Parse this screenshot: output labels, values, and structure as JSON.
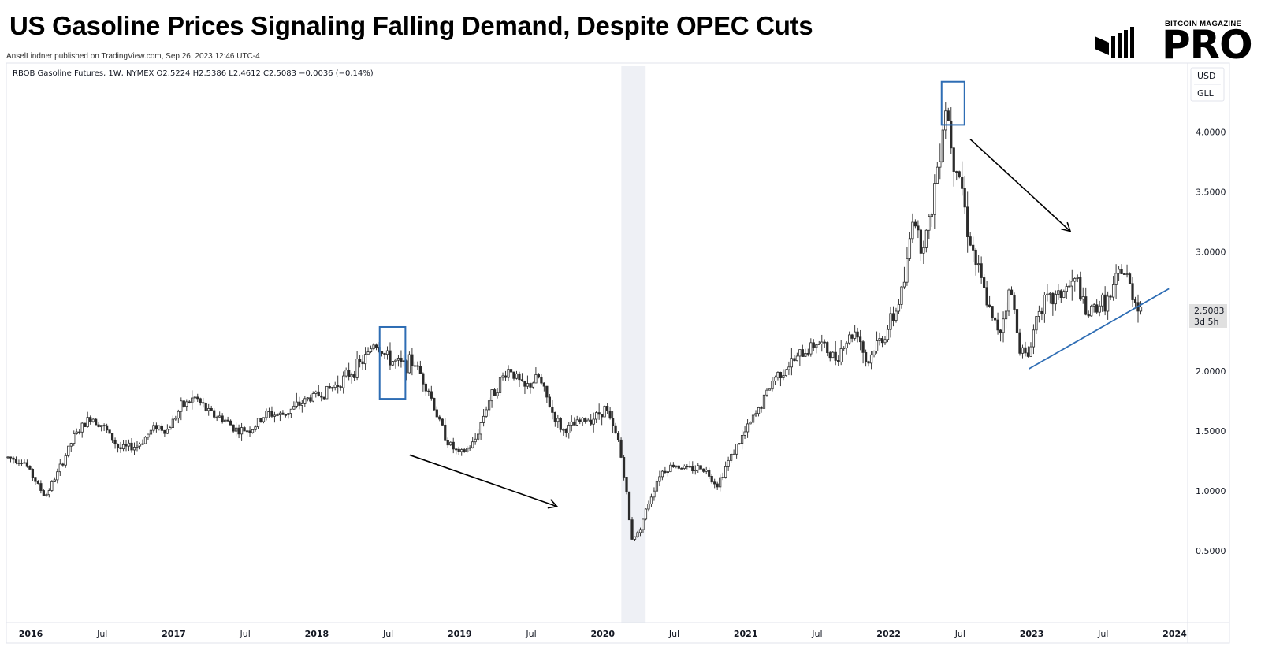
{
  "header": {
    "title": "US Gasoline Prices Signaling Falling Demand, Despite OPEC Cuts",
    "byline": "AnselLindner published on TradingView.com, Sep 26, 2023 12:46 UTC-4",
    "logo_small": "BITCOIN MAGAZINE",
    "logo_big": "PRO"
  },
  "chart_data": {
    "type": "candlestick",
    "legend": "RBOB Gasoline Futures, 1W, NYMEX  O2.5224  H2.5386  L2.4612  C2.5083  −0.0036 (−0.14%)",
    "currency_button": "USD",
    "unit_button": "GLL",
    "last_price": "2.5083",
    "countdown": "3d 5h",
    "y_ticks": [
      "4.0000",
      "3.5000",
      "3.0000",
      "2.5000",
      "2.0000",
      "1.5000",
      "1.0000",
      "0.5000"
    ],
    "y_tick_values": [
      4.0,
      3.5,
      3.0,
      2.5,
      2.0,
      1.5,
      1.0,
      0.5
    ],
    "ylim": [
      -0.1,
      4.55
    ],
    "x_ticks": [
      {
        "label": "2016",
        "t": 2016.0,
        "bold": true
      },
      {
        "label": "Jul",
        "t": 2016.5,
        "bold": false
      },
      {
        "label": "2017",
        "t": 2017.0,
        "bold": true
      },
      {
        "label": "Jul",
        "t": 2017.5,
        "bold": false
      },
      {
        "label": "2018",
        "t": 2018.0,
        "bold": true
      },
      {
        "label": "Jul",
        "t": 2018.5,
        "bold": false
      },
      {
        "label": "2019",
        "t": 2019.0,
        "bold": true
      },
      {
        "label": "Jul",
        "t": 2019.5,
        "bold": false
      },
      {
        "label": "2020",
        "t": 2020.0,
        "bold": true
      },
      {
        "label": "Jul",
        "t": 2020.5,
        "bold": false
      },
      {
        "label": "2021",
        "t": 2021.0,
        "bold": true
      },
      {
        "label": "Jul",
        "t": 2021.5,
        "bold": false
      },
      {
        "label": "2022",
        "t": 2022.0,
        "bold": true
      },
      {
        "label": "Jul",
        "t": 2022.5,
        "bold": false
      },
      {
        "label": "2023",
        "t": 2023.0,
        "bold": true
      },
      {
        "label": "Jul",
        "t": 2023.5,
        "bold": false
      },
      {
        "label": "2024",
        "t": 2024.0,
        "bold": true
      }
    ],
    "xlim": [
      2015.84,
      2024.08
    ],
    "shaded_period": [
      2020.13,
      2020.3
    ],
    "price_path": [
      [
        2015.84,
        1.28
      ],
      [
        2015.95,
        1.25
      ],
      [
        2016.05,
        1.05
      ],
      [
        2016.1,
        0.95
      ],
      [
        2016.2,
        1.18
      ],
      [
        2016.3,
        1.45
      ],
      [
        2016.42,
        1.62
      ],
      [
        2016.5,
        1.55
      ],
      [
        2016.62,
        1.35
      ],
      [
        2016.75,
        1.38
      ],
      [
        2016.88,
        1.55
      ],
      [
        2016.95,
        1.5
      ],
      [
        2017.05,
        1.7
      ],
      [
        2017.15,
        1.78
      ],
      [
        2017.25,
        1.65
      ],
      [
        2017.35,
        1.6
      ],
      [
        2017.45,
        1.5
      ],
      [
        2017.55,
        1.52
      ],
      [
        2017.65,
        1.65
      ],
      [
        2017.75,
        1.63
      ],
      [
        2017.85,
        1.7
      ],
      [
        2017.95,
        1.78
      ],
      [
        2018.05,
        1.82
      ],
      [
        2018.15,
        1.9
      ],
      [
        2018.25,
        2.0
      ],
      [
        2018.35,
        2.12
      ],
      [
        2018.4,
        2.25
      ],
      [
        2018.45,
        2.18
      ],
      [
        2018.5,
        2.1
      ],
      [
        2018.6,
        2.05
      ],
      [
        2018.68,
        2.08
      ],
      [
        2018.78,
        1.85
      ],
      [
        2018.85,
        1.6
      ],
      [
        2018.92,
        1.4
      ],
      [
        2019.0,
        1.3
      ],
      [
        2019.1,
        1.4
      ],
      [
        2019.2,
        1.75
      ],
      [
        2019.3,
        1.95
      ],
      [
        2019.35,
        2.03
      ],
      [
        2019.45,
        1.85
      ],
      [
        2019.55,
        1.95
      ],
      [
        2019.65,
        1.65
      ],
      [
        2019.72,
        1.5
      ],
      [
        2019.85,
        1.58
      ],
      [
        2019.95,
        1.62
      ],
      [
        2020.02,
        1.7
      ],
      [
        2020.06,
        1.55
      ],
      [
        2020.11,
        1.42
      ],
      [
        2020.16,
        1.05
      ],
      [
        2020.2,
        0.6
      ],
      [
        2020.25,
        0.65
      ],
      [
        2020.32,
        0.9
      ],
      [
        2020.4,
        1.15
      ],
      [
        2020.5,
        1.22
      ],
      [
        2020.6,
        1.18
      ],
      [
        2020.7,
        1.2
      ],
      [
        2020.8,
        1.05
      ],
      [
        2020.9,
        1.3
      ],
      [
        2021.0,
        1.5
      ],
      [
        2021.1,
        1.7
      ],
      [
        2021.2,
        1.95
      ],
      [
        2021.3,
        2.05
      ],
      [
        2021.4,
        2.15
      ],
      [
        2021.5,
        2.25
      ],
      [
        2021.55,
        2.2
      ],
      [
        2021.62,
        2.1
      ],
      [
        2021.7,
        2.25
      ],
      [
        2021.78,
        2.35
      ],
      [
        2021.85,
        2.05
      ],
      [
        2021.9,
        2.2
      ],
      [
        2021.97,
        2.3
      ],
      [
        2022.05,
        2.5
      ],
      [
        2022.12,
        2.8
      ],
      [
        2022.17,
        3.35
      ],
      [
        2022.22,
        3.05
      ],
      [
        2022.28,
        3.2
      ],
      [
        2022.35,
        3.8
      ],
      [
        2022.4,
        4.25
      ],
      [
        2022.45,
        3.8
      ],
      [
        2022.5,
        3.65
      ],
      [
        2022.55,
        3.2
      ],
      [
        2022.6,
        2.95
      ],
      [
        2022.67,
        2.65
      ],
      [
        2022.73,
        2.4
      ],
      [
        2022.78,
        2.35
      ],
      [
        2022.85,
        2.7
      ],
      [
        2022.92,
        2.2
      ],
      [
        2022.97,
        2.1
      ],
      [
        2023.05,
        2.55
      ],
      [
        2023.15,
        2.6
      ],
      [
        2023.25,
        2.7
      ],
      [
        2023.32,
        2.75
      ],
      [
        2023.38,
        2.45
      ],
      [
        2023.45,
        2.55
      ],
      [
        2023.55,
        2.6
      ],
      [
        2023.62,
        2.85
      ],
      [
        2023.66,
        2.8
      ],
      [
        2023.72,
        2.6
      ],
      [
        2023.78,
        2.51
      ]
    ],
    "highlight_boxes": [
      {
        "t0": 2018.44,
        "t1": 2018.62,
        "low": 1.77,
        "high": 2.37
      },
      {
        "t0": 2022.37,
        "t1": 2022.53,
        "low": 4.06,
        "high": 4.42
      }
    ],
    "arrows": [
      {
        "t0": 2018.65,
        "v0": 1.3,
        "t1": 2019.68,
        "v1": 0.87
      },
      {
        "t0": 2022.57,
        "v0": 3.94,
        "t1": 2023.27,
        "v1": 3.17
      }
    ],
    "trendline": {
      "t0": 2022.98,
      "v0": 2.02,
      "t1": 2023.96,
      "v1": 2.69
    }
  }
}
